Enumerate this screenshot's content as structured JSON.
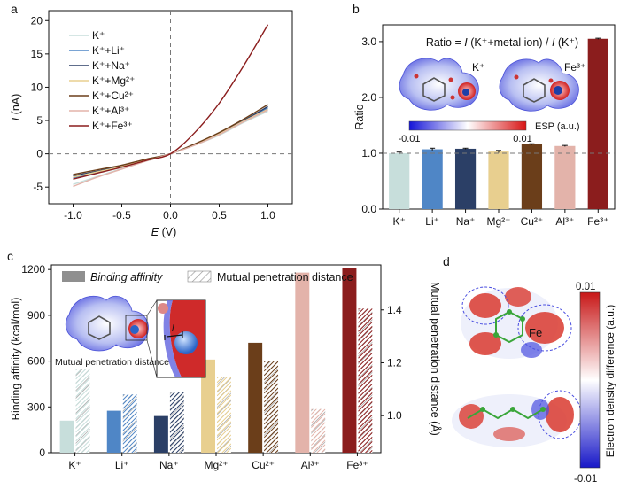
{
  "panels": {
    "a": "a",
    "b": "b",
    "c": "c",
    "d": "d"
  },
  "colors": {
    "K+": "#c7dedb",
    "K+Li+": "#4f86c6",
    "K+Na+": "#2b3f66",
    "K+Mg2+": "#e8cf8f",
    "K+Cu2+": "#6b3e1a",
    "K+Al3+": "#e3b3aa",
    "K+Fe3+": "#8b1d1d"
  },
  "chart_data": [
    {
      "panel": "a",
      "type": "line",
      "xlabel_pre": "E",
      "xlabel_unit": " (V)",
      "ylabel_pre": "I",
      "ylabel_unit": " (nA)",
      "xlim": [
        -1.25,
        1.25
      ],
      "ylim": [
        -7.5,
        21.5
      ],
      "xticks": [
        "-1.0",
        "-0.5",
        "0.0",
        "0.5",
        "1.0"
      ],
      "xtick_values": [
        -1.0,
        -0.5,
        0.0,
        0.5,
        1.0
      ],
      "yticks": [
        "-5",
        "0",
        "5",
        "10",
        "15",
        "20"
      ],
      "ytick_values": [
        -5,
        0,
        5,
        10,
        15,
        20
      ],
      "x": [
        -1.0,
        -0.75,
        -0.5,
        -0.25,
        0.0,
        0.25,
        0.5,
        0.75,
        1.0
      ],
      "series": [
        {
          "name": "K⁺",
          "values": [
            -4.6,
            -3.4,
            -2.2,
            -1.1,
            0.0,
            1.3,
            2.8,
            4.7,
            6.4
          ]
        },
        {
          "name": "K⁺+Li⁺",
          "values": [
            -3.6,
            -2.8,
            -1.9,
            -0.9,
            0.0,
            1.4,
            3.0,
            4.9,
            6.9
          ]
        },
        {
          "name": "K⁺+Na⁺",
          "values": [
            -3.3,
            -2.6,
            -1.8,
            -0.9,
            0.0,
            1.4,
            3.1,
            5.0,
            7.1
          ]
        },
        {
          "name": "K⁺+Mg²⁺",
          "values": [
            -3.5,
            -2.7,
            -1.9,
            -0.9,
            0.0,
            1.4,
            3.0,
            4.9,
            6.7
          ]
        },
        {
          "name": "K⁺+Cu²⁺",
          "values": [
            -3.1,
            -2.4,
            -1.7,
            -0.8,
            0.0,
            1.5,
            3.2,
            5.2,
            7.4
          ]
        },
        {
          "name": "K⁺+Al³⁺",
          "values": [
            -4.9,
            -3.5,
            -2.3,
            -1.1,
            0.0,
            1.3,
            2.9,
            4.8,
            6.6
          ]
        },
        {
          "name": "K⁺+Fe³⁺",
          "values": [
            -3.8,
            -2.9,
            -2.0,
            -1.0,
            0.0,
            3.2,
            7.6,
            13.2,
            19.4
          ]
        }
      ]
    },
    {
      "panel": "b",
      "type": "bar",
      "title_pre": "Ratio = ",
      "title_i1": "I",
      "title_mid": " (K⁺+metal ion) / ",
      "title_i2": "I",
      "title_post": " (K⁺)",
      "ylabel": "Ratio",
      "ylim": [
        0.0,
        3.3
      ],
      "yticks": [
        "0.0",
        "1.0",
        "2.0",
        "3.0"
      ],
      "ytick_values": [
        0,
        1,
        2,
        3
      ],
      "categories": [
        "K⁺",
        "Li⁺",
        "Na⁺",
        "Mg²⁺",
        "Cu²⁺",
        "Al³⁺",
        "Fe³⁺"
      ],
      "values": [
        1.0,
        1.07,
        1.08,
        1.03,
        1.16,
        1.13,
        3.05
      ],
      "errors": [
        0.02,
        0.02,
        0.01,
        0.02,
        0.01,
        0.01,
        0.01
      ],
      "reference_line": 1.0,
      "inset": {
        "left_label": "K⁺",
        "right_label": "Fe³⁺",
        "colorbar_label": "ESP (a.u.)",
        "colorbar_min": "-0.01",
        "colorbar_max": "0.01"
      }
    },
    {
      "panel": "c",
      "type": "bar",
      "ylabel": "Binding affinity (kcal/mol)",
      "y2label": "Mutual penetration distance (Å)",
      "ylim": [
        0,
        1230
      ],
      "y2lim": [
        0.86,
        1.57
      ],
      "yticks": [
        "0",
        "300",
        "600",
        "900",
        "1200"
      ],
      "ytick_values": [
        0,
        300,
        600,
        900,
        1200
      ],
      "y2ticks": [
        "1.0",
        "1.2",
        "1.4"
      ],
      "y2tick_values": [
        1.0,
        1.2,
        1.4
      ],
      "categories": [
        "K⁺",
        "Li⁺",
        "Na⁺",
        "Mg²⁺",
        "Cu²⁺",
        "Al³⁺",
        "Fe³⁺"
      ],
      "series": [
        {
          "name": "Binding affinity",
          "values": [
            210,
            275,
            240,
            610,
            720,
            1180,
            1210
          ]
        },
        {
          "name": "Mutual penetration distance",
          "values": [
            1.175,
            1.08,
            1.09,
            1.145,
            1.205,
            1.025,
            1.405
          ]
        }
      ],
      "inset_label": "Mutual penetration distance",
      "inset_symbol": "l"
    }
  ],
  "panel_d": {
    "colorbar_label": "Electron density difference (a.u.)",
    "colorbar_max": "0.01",
    "colorbar_min": "-0.01",
    "atom_label": "Fe"
  }
}
